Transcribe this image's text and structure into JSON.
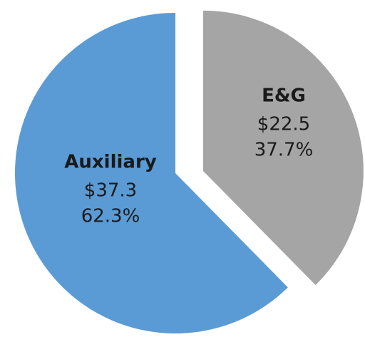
{
  "chart_data": {
    "type": "pie",
    "categories": [
      "E&G",
      "Auxiliary"
    ],
    "values": [
      22.5,
      37.3
    ],
    "value_labels": [
      "$22.5",
      "$37.3"
    ],
    "percentages": [
      37.7,
      62.3
    ],
    "percentage_labels": [
      "37.7%",
      "62.3%"
    ],
    "colors": [
      "#a5a5a5",
      "#5b9bd5"
    ],
    "exploded": [
      "E&G"
    ]
  }
}
